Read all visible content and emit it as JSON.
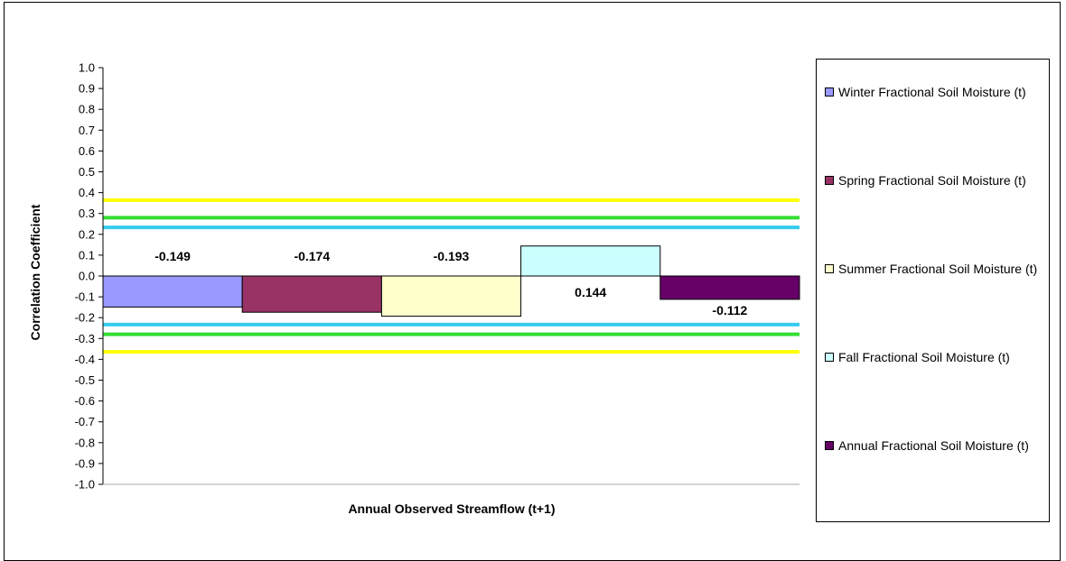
{
  "chart_data": {
    "type": "bar",
    "title": "",
    "xlabel": "Annual Observed Streamflow (t+1)",
    "ylabel": "Correlation Coefficient",
    "ylim": [
      -1.0,
      1.0
    ],
    "yticks": [
      "1.0",
      "0.9",
      "0.8",
      "0.7",
      "0.6",
      "0.5",
      "0.4",
      "0.3",
      "0.2",
      "0.1",
      "0.0",
      "-0.1",
      "-0.2",
      "-0.3",
      "-0.4",
      "-0.5",
      "-0.6",
      "-0.7",
      "-0.8",
      "-0.9",
      "-1.0"
    ],
    "grid": false,
    "legend_position": "right",
    "series": [
      {
        "name": "Winter Fractional Soil Moisture (t)",
        "value": -0.149,
        "label": "-0.149",
        "color": "#9999ff"
      },
      {
        "name": "Spring Fractional Soil Moisture (t)",
        "value": -0.174,
        "label": "-0.174",
        "color": "#993366"
      },
      {
        "name": "Summer Fractional Soil Moisture (t)",
        "value": -0.193,
        "label": "-0.193",
        "color": "#ffffcc"
      },
      {
        "name": "Fall Fractional Soil Moisture (t)",
        "value": 0.144,
        "label": "0.144",
        "color": "#ccffff"
      },
      {
        "name": "Annual Fractional Soil Moisture (t)",
        "value": -0.112,
        "label": "-0.112",
        "color": "#660066"
      }
    ],
    "reference_lines": [
      {
        "value": 0.364,
        "color": "#ffff00"
      },
      {
        "value": 0.28,
        "color": "#33dd33"
      },
      {
        "value": 0.233,
        "color": "#33ccee"
      },
      {
        "value": -0.233,
        "color": "#33ccee"
      },
      {
        "value": -0.28,
        "color": "#33dd33"
      },
      {
        "value": -0.364,
        "color": "#ffff00"
      }
    ]
  }
}
